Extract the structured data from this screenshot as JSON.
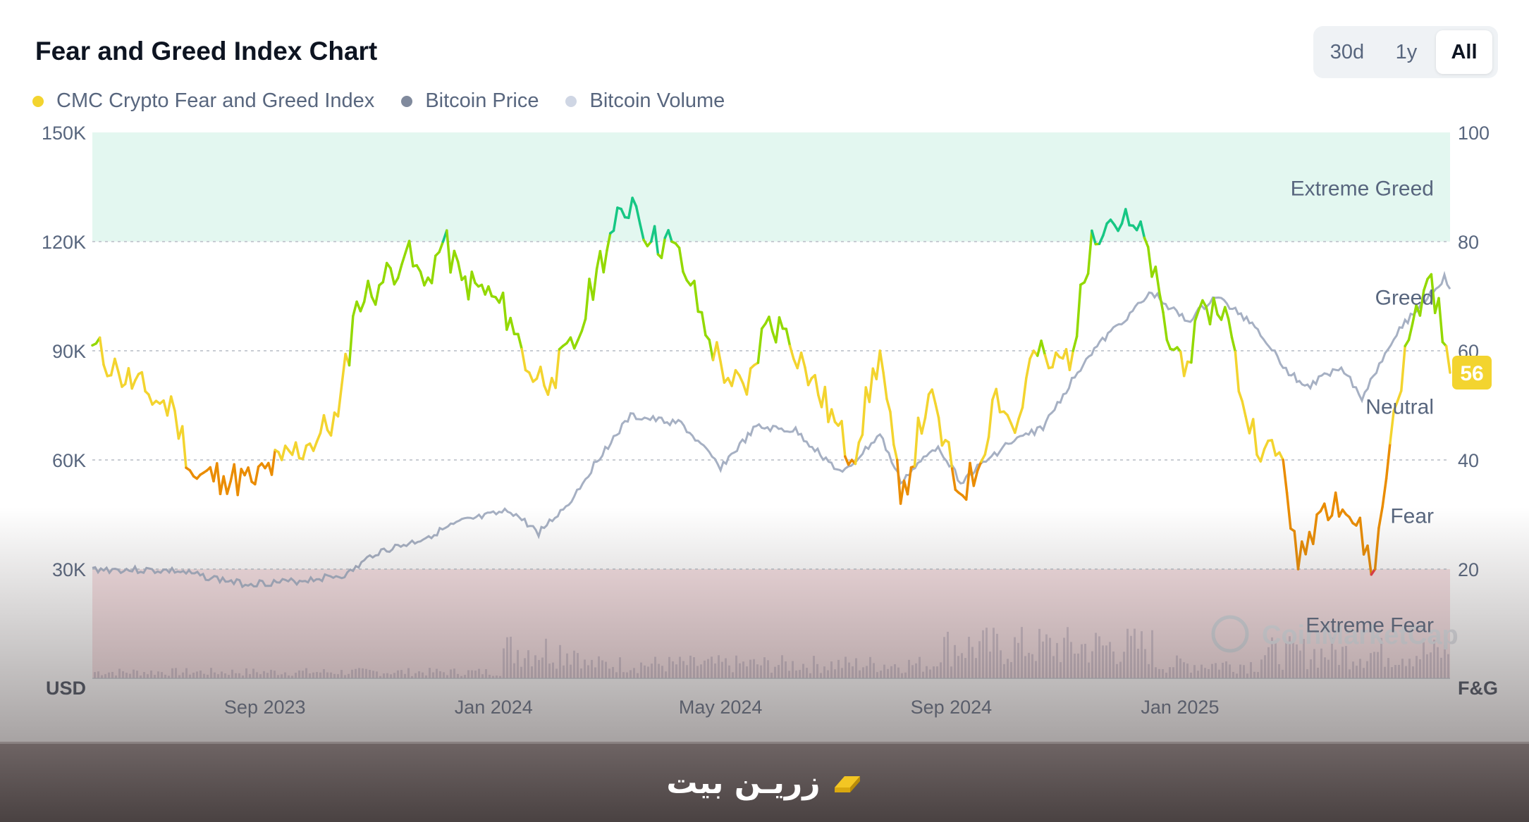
{
  "header": {
    "title": "Fear and Greed Index Chart",
    "range_buttons": [
      {
        "label": "30d",
        "active": false
      },
      {
        "label": "1y",
        "active": false
      },
      {
        "label": "All",
        "active": true
      }
    ]
  },
  "legend": [
    {
      "label": "CMC Crypto Fear and Greed Index",
      "color": "#f3d42f"
    },
    {
      "label": "Bitcoin Price",
      "color": "#808a9d"
    },
    {
      "label": "Bitcoin Volume",
      "color": "#cfd6e4"
    }
  ],
  "colors": {
    "extreme_greed_zone": "#e3f7f0",
    "extreme_fear_zone": "#f6e0e3",
    "extreme_greed_line": "#16c784",
    "greed_line": "#93d900",
    "neutral_line": "#f3d42f",
    "fear_line": "#ea8c00",
    "extreme_fear_line": "#ea3943",
    "price_line": "#a6b0c3",
    "volume_bars": "#c9b8c6",
    "current_badge": "#f3d42f"
  },
  "watermark": "CoinMarketCap",
  "footer": {
    "brand": "زریـن بیت"
  },
  "chart_data": {
    "type": "line",
    "title": "Fear and Greed Index Chart",
    "x_ticks": [
      "Sep 2023",
      "Jan 2024",
      "May 2024",
      "Sep 2024",
      "Jan 2025"
    ],
    "left_axis": {
      "unit": "USD",
      "ticks": [
        "150K",
        "120K",
        "90K",
        "60K",
        "30K"
      ],
      "range": [
        0,
        150000
      ]
    },
    "right_axis": {
      "unit": "F&G",
      "ticks": [
        "100",
        "80",
        "60",
        "40",
        "20"
      ],
      "range": [
        0,
        100
      ]
    },
    "zones": [
      "Extreme Greed",
      "Greed",
      "Neutral",
      "Fear",
      "Extreme Fear"
    ],
    "current_value": "56",
    "x_range": [
      "2023-06-01",
      "2025-05-25"
    ],
    "series": [
      {
        "name": "CMC Crypto Fear and Greed Index",
        "axis": "right",
        "points": [
          [
            "2023-06-01",
            61
          ],
          [
            "2023-06-15",
            56
          ],
          [
            "2023-07-01",
            52
          ],
          [
            "2023-07-15",
            49
          ],
          [
            "2023-07-25",
            37
          ],
          [
            "2023-08-10",
            37
          ],
          [
            "2023-08-25",
            36
          ],
          [
            "2023-09-10",
            40
          ],
          [
            "2023-09-25",
            43
          ],
          [
            "2023-10-10",
            48
          ],
          [
            "2023-10-20",
            69
          ],
          [
            "2023-11-01",
            72
          ],
          [
            "2023-11-15",
            78
          ],
          [
            "2023-11-25",
            72
          ],
          [
            "2023-12-05",
            80
          ],
          [
            "2023-12-15",
            73
          ],
          [
            "2023-12-31",
            70
          ],
          [
            "2024-01-10",
            66
          ],
          [
            "2024-01-20",
            56
          ],
          [
            "2024-02-01",
            55
          ],
          [
            "2024-02-15",
            62
          ],
          [
            "2024-02-25",
            75
          ],
          [
            "2024-03-05",
            82
          ],
          [
            "2024-03-15",
            88
          ],
          [
            "2024-03-25",
            80
          ],
          [
            "2024-04-05",
            80
          ],
          [
            "2024-04-15",
            72
          ],
          [
            "2024-04-25",
            62
          ],
          [
            "2024-05-05",
            55
          ],
          [
            "2024-05-15",
            52
          ],
          [
            "2024-05-25",
            65
          ],
          [
            "2024-06-05",
            64
          ],
          [
            "2024-06-15",
            57
          ],
          [
            "2024-07-01",
            47
          ],
          [
            "2024-07-10",
            40
          ],
          [
            "2024-07-25",
            60
          ],
          [
            "2024-08-05",
            32
          ],
          [
            "2024-08-20",
            52
          ],
          [
            "2024-09-05",
            34
          ],
          [
            "2024-09-15",
            38
          ],
          [
            "2024-09-25",
            53
          ],
          [
            "2024-10-05",
            45
          ],
          [
            "2024-10-15",
            60
          ],
          [
            "2024-10-25",
            57
          ],
          [
            "2024-11-05",
            60
          ],
          [
            "2024-11-15",
            82
          ],
          [
            "2024-11-25",
            84
          ],
          [
            "2024-12-05",
            83
          ],
          [
            "2024-12-15",
            79
          ],
          [
            "2024-12-25",
            62
          ],
          [
            "2025-01-05",
            58
          ],
          [
            "2025-01-15",
            68
          ],
          [
            "2025-01-25",
            68
          ],
          [
            "2025-02-05",
            48
          ],
          [
            "2025-02-15",
            42
          ],
          [
            "2025-02-25",
            40
          ],
          [
            "2025-03-05",
            20
          ],
          [
            "2025-03-15",
            30
          ],
          [
            "2025-03-25",
            34
          ],
          [
            "2025-04-05",
            28
          ],
          [
            "2025-04-15",
            20
          ],
          [
            "2025-04-25",
            49
          ],
          [
            "2025-05-05",
            65
          ],
          [
            "2025-05-15",
            74
          ],
          [
            "2025-05-25",
            56
          ]
        ]
      },
      {
        "name": "Bitcoin Price",
        "axis": "left",
        "points": [
          [
            "2023-06-01",
            30000
          ],
          [
            "2023-07-15",
            29500
          ],
          [
            "2023-08-20",
            26000
          ],
          [
            "2023-09-15",
            26500
          ],
          [
            "2023-10-15",
            28500
          ],
          [
            "2023-10-30",
            34500
          ],
          [
            "2023-11-20",
            37500
          ],
          [
            "2023-12-15",
            43000
          ],
          [
            "2024-01-10",
            46000
          ],
          [
            "2024-01-25",
            40000
          ],
          [
            "2024-02-10",
            48000
          ],
          [
            "2024-02-28",
            62000
          ],
          [
            "2024-03-14",
            72000
          ],
          [
            "2024-04-10",
            70000
          ],
          [
            "2024-05-01",
            58000
          ],
          [
            "2024-05-20",
            69000
          ],
          [
            "2024-06-10",
            68000
          ],
          [
            "2024-07-05",
            56000
          ],
          [
            "2024-07-25",
            67000
          ],
          [
            "2024-08-05",
            54000
          ],
          [
            "2024-08-25",
            64000
          ],
          [
            "2024-09-06",
            54000
          ],
          [
            "2024-09-30",
            64000
          ],
          [
            "2024-10-20",
            69000
          ],
          [
            "2024-11-12",
            88000
          ],
          [
            "2024-11-25",
            95000
          ],
          [
            "2024-12-17",
            106000
          ],
          [
            "2025-01-05",
            98000
          ],
          [
            "2025-01-20",
            105000
          ],
          [
            "2025-02-10",
            97000
          ],
          [
            "2025-02-28",
            84000
          ],
          [
            "2025-03-10",
            80000
          ],
          [
            "2025-03-28",
            86000
          ],
          [
            "2025-04-08",
            77000
          ],
          [
            "2025-04-25",
            94000
          ],
          [
            "2025-05-10",
            103000
          ],
          [
            "2025-05-22",
            110000
          ],
          [
            "2025-05-25",
            107000
          ]
        ]
      }
    ]
  }
}
